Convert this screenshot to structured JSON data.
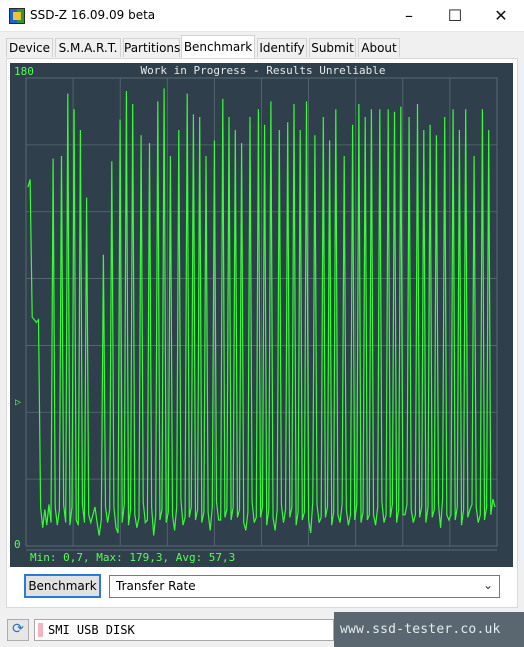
{
  "window": {
    "title": "SSD-Z 16.09.09 beta",
    "minimize_glyph": "–",
    "maximize_glyph": "☐",
    "close_glyph": "✕"
  },
  "tabs": [
    {
      "label": "Device"
    },
    {
      "label": "S.M.A.R.T."
    },
    {
      "label": "Partitions"
    },
    {
      "label": "Benchmark",
      "active": true
    },
    {
      "label": "Identify"
    },
    {
      "label": "Submit"
    },
    {
      "label": "About"
    }
  ],
  "benchmark": {
    "button_label": "Benchmark",
    "mode_select_value": "Transfer Rate",
    "select_arrow_glyph": "⌄"
  },
  "status": {
    "device_name": "SMI USB DISK",
    "refresh_icon": "refresh-icon",
    "refresh_glyph": "⟳"
  },
  "watermark": "www.ssd-tester.co.uk",
  "colors": {
    "chart_bg": "#2f3f4b",
    "grid": "#5b6b75",
    "trace": "#33ff33",
    "label": "#55ff55",
    "accent": "#2a7bd4"
  },
  "chart_data": {
    "type": "line",
    "title": "Work in Progress - Results Unreliable",
    "ymax_label": "180",
    "ymin_label": "0",
    "ylim": [
      0,
      180
    ],
    "marker_glyph": "▷",
    "stats": "Min: 0,7, Max: 179,3, Avg: 57,3",
    "min": 0.7,
    "max": 179.3,
    "avg": 57.3,
    "grid": true,
    "series": [
      {
        "values": [
          138,
          141,
          88,
          87,
          86,
          87,
          15,
          7,
          14,
          8,
          16,
          9,
          149,
          15,
          8,
          14,
          150,
          16,
          9,
          174,
          8,
          15,
          168,
          10,
          8,
          160,
          16,
          9,
          134,
          12,
          9,
          12,
          15,
          9,
          4,
          10,
          112,
          15,
          9,
          14,
          148,
          15,
          7,
          5,
          164,
          9,
          16,
          175,
          8,
          14,
          170,
          12,
          7,
          11,
          158,
          17,
          9,
          10,
          155,
          15,
          4,
          12,
          171,
          10,
          14,
          176,
          9,
          13,
          150,
          12,
          6,
          15,
          160,
          18,
          8,
          11,
          174,
          11,
          15,
          166,
          10,
          14,
          165,
          9,
          13,
          150,
          13,
          6,
          15,
          156,
          17,
          10,
          10,
          172,
          11,
          14,
          165,
          10,
          15,
          160,
          11,
          14,
          155,
          9,
          6,
          13,
          165,
          17,
          9,
          11,
          168,
          11,
          15,
          162,
          8,
          14,
          171,
          11,
          6,
          14,
          160,
          16,
          9,
          14,
          163,
          11,
          15,
          170,
          8,
          13,
          160,
          10,
          13,
          171,
          10,
          5,
          17,
          158,
          16,
          9,
          11,
          165,
          11,
          15,
          156,
          8,
          13,
          168,
          12,
          9,
          16,
          150,
          14,
          8,
          12,
          162,
          10,
          16,
          170,
          9,
          13,
          165,
          10,
          12,
          168,
          12,
          8,
          15,
          168,
          17,
          9,
          12,
          168,
          11,
          16,
          167,
          9,
          14,
          169,
          12,
          12,
          16,
          165,
          14,
          9,
          12,
          170,
          11,
          15,
          160,
          9,
          15,
          162,
          11,
          14,
          158,
          16,
          7,
          18,
          165,
          12,
          10,
          12,
          168,
          10,
          15,
          160,
          8,
          14,
          168,
          11,
          14,
          16,
          150,
          15,
          9,
          12,
          168,
          10,
          15,
          160,
          12,
          18,
          15
        ]
      }
    ]
  }
}
